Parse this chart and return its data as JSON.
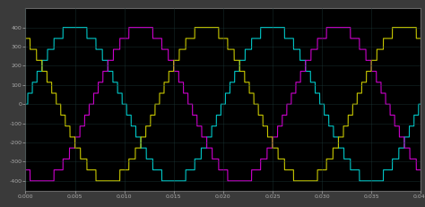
{
  "bg_color": "#000000",
  "frame_bg": "#111111",
  "grid_color": "#1e3a3a",
  "colors": [
    "#00c8c8",
    "#cc00cc",
    "#c8c800"
  ],
  "xlim": [
    0,
    0.04
  ],
  "ylim": [
    -450,
    500
  ],
  "amplitude": 400,
  "freq": 50,
  "n_levels": 7,
  "phase_shifts": [
    0,
    2.0944,
    4.1888
  ],
  "figsize": [
    4.74,
    2.31
  ],
  "dpi": 100,
  "linewidth": 0.8,
  "outer_bg": "#3a3a3a"
}
